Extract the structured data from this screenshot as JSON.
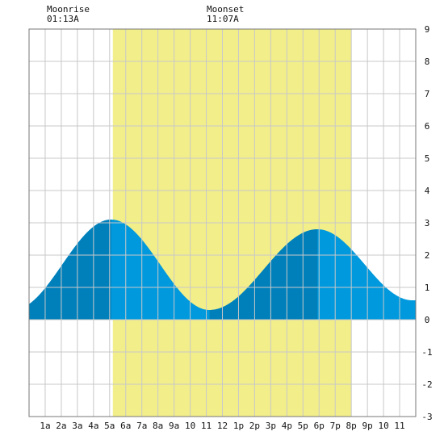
{
  "moon": {
    "moonrise_label": "Moonrise",
    "moonrise_time": "01:13A",
    "moonset_label": "Moonset",
    "moonset_time": "11:07A"
  },
  "chart_data": {
    "type": "area",
    "x_tick_labels": [
      "1a",
      "2a",
      "3a",
      "4a",
      "5a",
      "6a",
      "7a",
      "8a",
      "9a",
      "10",
      "11",
      "12",
      "1p",
      "2p",
      "3p",
      "4p",
      "5p",
      "6p",
      "7p",
      "8p",
      "9p",
      "10",
      "11"
    ],
    "y_ticks": [
      -3,
      -2,
      -1,
      0,
      1,
      2,
      3,
      4,
      5,
      6,
      7,
      8,
      9
    ],
    "ylim": [
      -3,
      9
    ],
    "xlim_hours": [
      0,
      24
    ],
    "grid": true,
    "daylight_hours": [
      5.2,
      20.0
    ],
    "tide_extremes_hours": [
      {
        "hour": -1.0,
        "height": 0.3
      },
      {
        "hour": 5.1,
        "height": 3.1
      },
      {
        "hour": 11.2,
        "height": 0.3
      },
      {
        "hour": 17.9,
        "height": 2.8
      },
      {
        "hour": 23.8,
        "height": 0.6
      }
    ],
    "rising_intervals_hours": [
      [
        0,
        5.1
      ],
      [
        11.2,
        17.9
      ]
    ],
    "colors": {
      "daylight": "#f2ee8a",
      "tide_falling": "#0099dd",
      "tide_rising": "#0080bb",
      "grid": "#c8c8c8",
      "frame": "#777777"
    }
  }
}
